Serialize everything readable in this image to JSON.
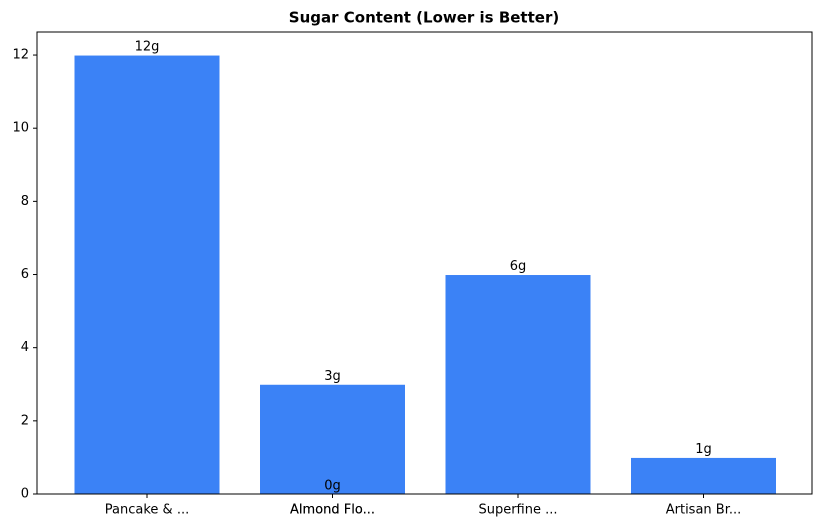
{
  "chart_data": {
    "type": "bar",
    "title": "Sugar Content (Lower is Better)",
    "categories": [
      "Pancake & ...",
      "Almond Flo...",
      "Almond Flo...",
      "Superfine ...",
      "Artisan Br..."
    ],
    "values": [
      12,
      3,
      0,
      6,
      1
    ],
    "value_labels": [
      "12g",
      "3g",
      "0g",
      "6g",
      "1g"
    ],
    "color": "#3b82f6",
    "ylim": [
      0,
      12.63
    ],
    "yticks": [
      0,
      2,
      4,
      6,
      8,
      10,
      12
    ],
    "grid": false
  }
}
